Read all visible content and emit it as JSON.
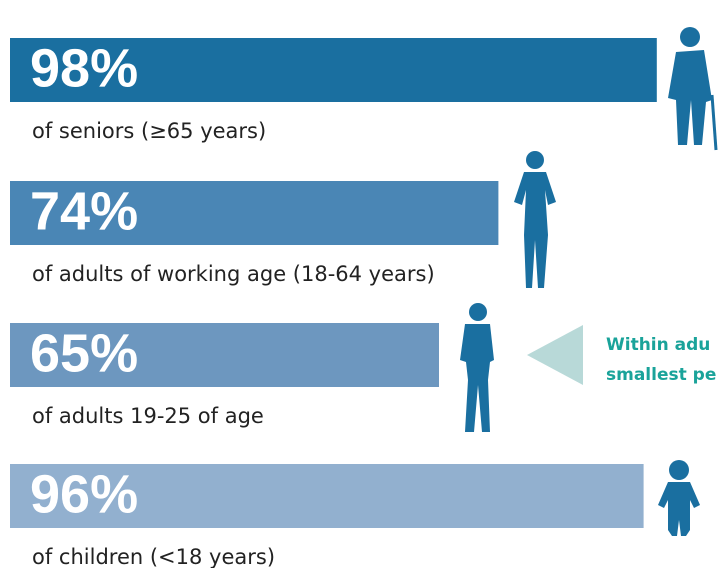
{
  "chart_data": {
    "type": "hbar",
    "categories": [
      "of seniors (≥65 years)",
      "of adults of working age (18-64 years)",
      "of adults 19-25 of age",
      "of children (<18 years)"
    ],
    "values": [
      98,
      74,
      65,
      96
    ],
    "value_labels": [
      "98%",
      "74%",
      "65%",
      "96%"
    ],
    "colors": [
      "#1a6fa0",
      "#4a86b5",
      "#6d97bf",
      "#92b0cf"
    ],
    "xlim": [
      0,
      100
    ],
    "annotation": [
      "Within adu",
      "smallest pe"
    ]
  }
}
